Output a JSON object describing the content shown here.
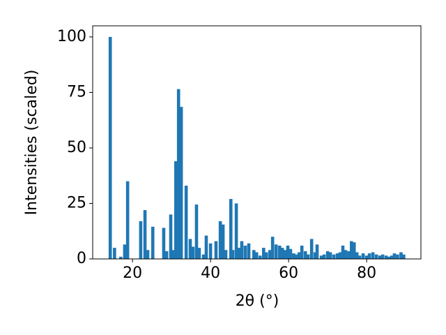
{
  "chart_data": {
    "type": "bar",
    "xlabel": "2θ (°)",
    "ylabel": "Intensities (scaled)",
    "color": "#1f77b4",
    "x": [
      14.3,
      15.4,
      17.0,
      18.0,
      18.75,
      22.1,
      23.2,
      23.9,
      25.2,
      28.0,
      28.75,
      29.8,
      30.4,
      31.1,
      31.8,
      32.5,
      33.75,
      34.8,
      35.5,
      36.4,
      37.1,
      38.2,
      38.9,
      40.0,
      41.4,
      42.5,
      43.2,
      43.9,
      45.2,
      45.7,
      46.6,
      47.3,
      48.0,
      48.9,
      49.8,
      51.1,
      51.8,
      52.7,
      53.6,
      54.3,
      55.2,
      55.9,
      56.8,
      57.7,
      58.4,
      59.1,
      59.8,
      60.5,
      61.3,
      62.0,
      62.7,
      63.4,
      64.3,
      65.0,
      65.9,
      66.8,
      67.3,
      68.4,
      69.1,
      70.0,
      70.7,
      71.6,
      72.5,
      73.2,
      73.9,
      74.6,
      75.4,
      76.1,
      76.8,
      77.5,
      78.2,
      79.1,
      80.0,
      80.7,
      81.6,
      82.5,
      83.4,
      84.1,
      85.0,
      85.7,
      86.4,
      87.1,
      87.9,
      88.8,
      89.5
    ],
    "values": [
      100,
      5,
      1,
      6.5,
      35,
      17,
      22,
      4,
      14.5,
      14,
      3.5,
      20,
      4,
      44,
      76.5,
      68.5,
      33,
      9,
      5.5,
      24.5,
      5,
      2,
      10.5,
      7,
      8,
      17,
      15.5,
      4,
      27,
      4,
      25,
      5,
      8,
      6,
      7,
      4,
      3,
      1.5,
      5,
      3,
      4,
      10,
      6.5,
      6,
      5,
      4,
      6,
      4.5,
      2.5,
      2,
      3,
      6,
      3.5,
      2,
      9,
      3,
      6.5,
      1.5,
      2,
      3.5,
      3,
      2,
      2.5,
      3,
      6,
      4,
      3.5,
      8,
      7.5,
      3,
      1.5,
      2.5,
      1.5,
      2.5,
      3,
      2,
      1.5,
      2,
      1.5,
      1,
      1.5,
      2.5,
      2,
      3,
      2
    ],
    "xlim": [
      9.8,
      93.9
    ],
    "ylim": [
      0,
      105
    ],
    "xticks": [
      20,
      40,
      60,
      80
    ],
    "yticks": [
      0,
      25,
      50,
      75,
      100
    ]
  }
}
